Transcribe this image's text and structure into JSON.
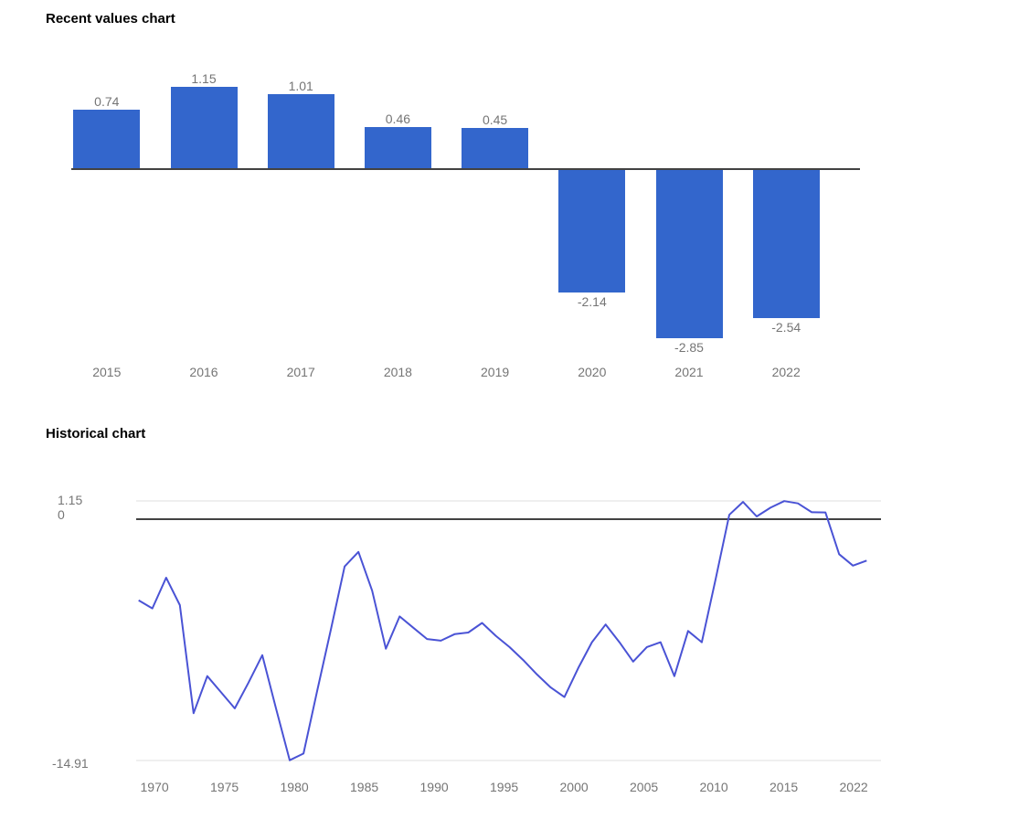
{
  "page": {
    "background": "#ffffff",
    "title_color": "#000000"
  },
  "chart_data": [
    {
      "type": "bar",
      "title": "Recent values chart",
      "categories": [
        "2015",
        "2016",
        "2017",
        "2018",
        "2019",
        "2020",
        "2021",
        "2022"
      ],
      "values": [
        0.74,
        1.15,
        1.01,
        0.46,
        0.45,
        -2.14,
        -2.85,
        -2.54
      ],
      "value_labels": [
        "0.74",
        "1.15",
        "1.01",
        "0.46",
        "0.45",
        "-2.14",
        "-2.85",
        "-2.54"
      ],
      "bar_color": "#3366cc",
      "axis_color": "#424242",
      "label_color": "#757575",
      "grid": false,
      "baseline": 0,
      "legend": "none"
    },
    {
      "type": "line",
      "title": "Historical chart",
      "x": [
        1969,
        1970,
        1971,
        1972,
        1973,
        1974,
        1975,
        1976,
        1977,
        1978,
        1979,
        1980,
        1981,
        1982,
        1983,
        1984,
        1985,
        1986,
        1987,
        1988,
        1989,
        1990,
        1991,
        1992,
        1993,
        1994,
        1995,
        1996,
        1997,
        1998,
        1999,
        2000,
        2001,
        2002,
        2003,
        2004,
        2005,
        2006,
        2007,
        2008,
        2009,
        2010,
        2011,
        2012,
        2013,
        2014,
        2015,
        2016,
        2017,
        2018,
        2019,
        2020,
        2021,
        2022
      ],
      "values": [
        -5.0,
        -5.5,
        -3.6,
        -5.3,
        -12.0,
        -9.7,
        -10.7,
        -11.7,
        -10.1,
        -8.4,
        -11.7,
        -14.91,
        -14.5,
        -10.6,
        -6.8,
        -2.9,
        -2.0,
        -4.4,
        -8.0,
        -6.0,
        -6.7,
        -7.4,
        -7.5,
        -7.1,
        -7.0,
        -6.4,
        -7.2,
        -7.9,
        -8.7,
        -9.6,
        -10.4,
        -11.0,
        -9.2,
        -7.6,
        -6.5,
        -7.6,
        -8.8,
        -7.9,
        -7.6,
        -9.7,
        -6.9,
        -7.6,
        -3.7,
        0.3,
        1.1,
        0.2,
        0.74,
        1.15,
        1.01,
        0.46,
        0.45,
        -2.14,
        -2.85,
        -2.54
      ],
      "y_axis_labels": [
        "1.15",
        "0",
        "-14.91"
      ],
      "x_axis_labels": [
        "1970",
        "1975",
        "1980",
        "1985",
        "1990",
        "1995",
        "2000",
        "2005",
        "2010",
        "2015",
        "2022"
      ],
      "ylim": [
        -14.91,
        1.15
      ],
      "line_color": "#4a53d5",
      "gridline_color": "#efefef",
      "zero_line_color": "#424242",
      "label_color": "#757575",
      "grid": true,
      "legend": "none"
    }
  ]
}
